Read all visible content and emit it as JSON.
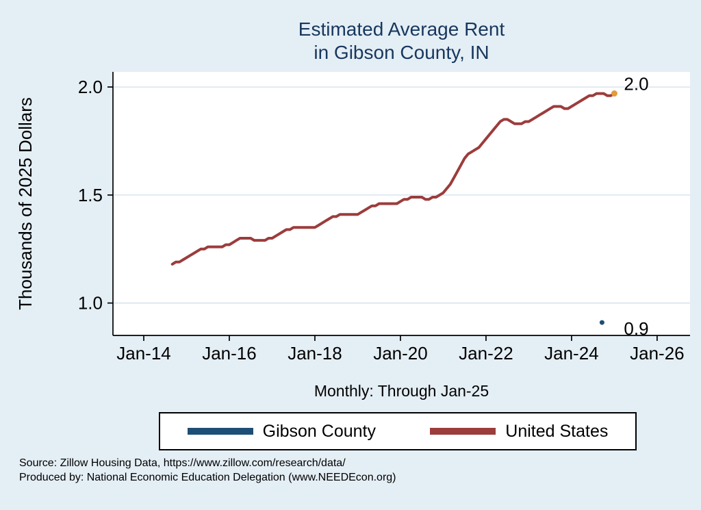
{
  "title": {
    "line1": "Estimated Average Rent",
    "line2": "in Gibson County, IN"
  },
  "subtitle": "Monthly: Through Jan-25",
  "legend": {
    "items": [
      {
        "label": "Gibson County",
        "color": "#1d4f76"
      },
      {
        "label": "United States",
        "color": "#9c3c3c"
      }
    ]
  },
  "footer": {
    "line1": "Source: Zillow Housing Data, https://www.zillow.com/research/data/",
    "line2": "Produced by: National Economic Education Delegation (www.NEEDEcon.org)"
  },
  "chart_data": {
    "type": "line",
    "title": "Estimated Average Rent in Gibson County, IN",
    "subtitle": "Monthly: Through Jan-25",
    "xlabel": "",
    "ylabel": "Thousands of 2025 Dollars",
    "grid": true,
    "grid_color": "#cfe0ec",
    "plot_background": "#ffffff",
    "page_background": "#e4eef5",
    "xlim": [
      2013.28,
      2026.77
    ],
    "ylim": [
      0.85,
      2.07
    ],
    "x_ticks": [
      {
        "label": "Jan-14",
        "year": 2014
      },
      {
        "label": "Jan-16",
        "year": 2016
      },
      {
        "label": "Jan-18",
        "year": 2018
      },
      {
        "label": "Jan-20",
        "year": 2020
      },
      {
        "label": "Jan-22",
        "year": 2022
      },
      {
        "label": "Jan-24",
        "year": 2024
      },
      {
        "label": "Jan-26",
        "year": 2026
      }
    ],
    "y_ticks": [
      {
        "label": "1.0",
        "value": 1.0
      },
      {
        "label": "1.5",
        "value": 1.5
      },
      {
        "label": "2.0",
        "value": 2.0
      }
    ],
    "series": [
      {
        "name": "United States",
        "color": "#9c3c3c",
        "frequency": "monthly",
        "start": "2014-09",
        "values": [
          1.18,
          1.19,
          1.19,
          1.2,
          1.21,
          1.22,
          1.23,
          1.24,
          1.25,
          1.25,
          1.26,
          1.26,
          1.26,
          1.26,
          1.26,
          1.27,
          1.27,
          1.28,
          1.29,
          1.3,
          1.3,
          1.3,
          1.3,
          1.29,
          1.29,
          1.29,
          1.29,
          1.3,
          1.3,
          1.31,
          1.32,
          1.33,
          1.34,
          1.34,
          1.35,
          1.35,
          1.35,
          1.35,
          1.35,
          1.35,
          1.35,
          1.36,
          1.37,
          1.38,
          1.39,
          1.4,
          1.4,
          1.41,
          1.41,
          1.41,
          1.41,
          1.41,
          1.41,
          1.42,
          1.43,
          1.44,
          1.45,
          1.45,
          1.46,
          1.46,
          1.46,
          1.46,
          1.46,
          1.46,
          1.47,
          1.48,
          1.48,
          1.49,
          1.49,
          1.49,
          1.49,
          1.48,
          1.48,
          1.49,
          1.49,
          1.5,
          1.51,
          1.53,
          1.55,
          1.58,
          1.61,
          1.64,
          1.67,
          1.69,
          1.7,
          1.71,
          1.72,
          1.74,
          1.76,
          1.78,
          1.8,
          1.82,
          1.84,
          1.85,
          1.85,
          1.84,
          1.83,
          1.83,
          1.83,
          1.84,
          1.84,
          1.85,
          1.86,
          1.87,
          1.88,
          1.89,
          1.9,
          1.91,
          1.91,
          1.91,
          1.9,
          1.9,
          1.91,
          1.92,
          1.93,
          1.94,
          1.95,
          1.96,
          1.96,
          1.97,
          1.97,
          1.97,
          1.96,
          1.96,
          1.97
        ],
        "end_label": "2.0",
        "end_marker_color": "#e49c39"
      },
      {
        "name": "Gibson County",
        "color": "#1d4f76",
        "frequency": "monthly",
        "points": [
          {
            "date": "2025-01",
            "value": 0.91
          }
        ],
        "end_label": "0.9"
      }
    ],
    "legend_position": "bottom"
  }
}
